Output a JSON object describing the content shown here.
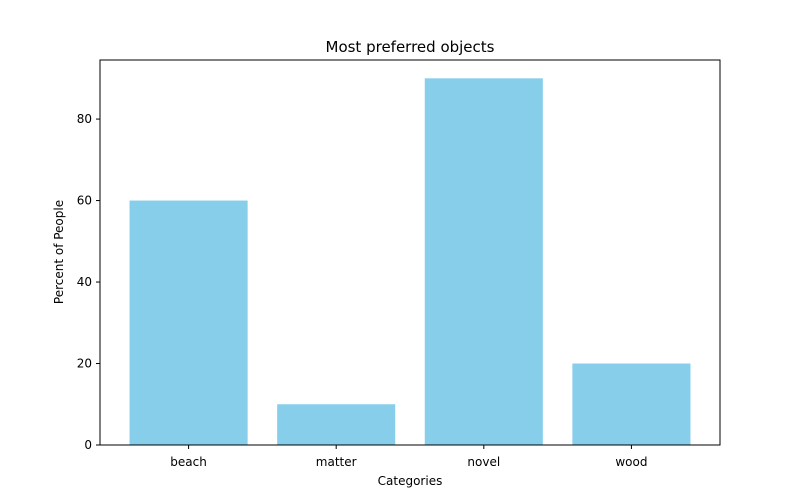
{
  "chart_data": {
    "type": "bar",
    "title": "Most preferred objects",
    "xlabel": "Categories",
    "ylabel": "Percent of People",
    "categories": [
      "beach",
      "matter",
      "novel",
      "wood"
    ],
    "values": [
      60,
      10,
      90,
      20
    ],
    "ylim": [
      0,
      94.5
    ],
    "yticks": [
      0,
      20,
      40,
      60,
      80
    ],
    "bar_color": "#87CEEB",
    "grid": false,
    "legend": "none"
  }
}
